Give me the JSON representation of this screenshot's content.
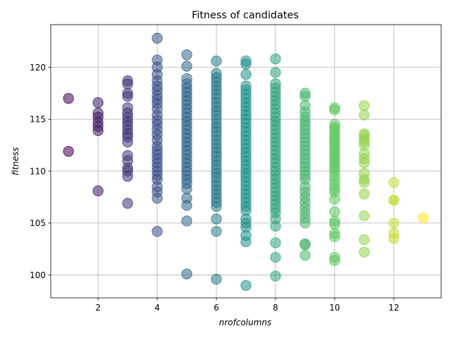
{
  "chart_data": {
    "type": "scatter",
    "title": "Fitness of candidates",
    "xlabel": "nrofcolumns",
    "ylabel": "fitness",
    "xlim": [
      0.4,
      13.6
    ],
    "ylim": [
      97.8,
      124.1
    ],
    "xticks": [
      2,
      4,
      6,
      8,
      10,
      12
    ],
    "yticks": [
      100,
      105,
      110,
      115,
      120
    ],
    "grid": true,
    "colormap": "viridis",
    "color_range": [
      1,
      13
    ],
    "marker_alpha": 0.55,
    "points_by_x": [
      {
        "x": 1,
        "y": [
          117.0,
          111.9
        ]
      },
      {
        "x": 2,
        "y": [
          116.6,
          115.6,
          115.2,
          114.7,
          114.3,
          113.9,
          108.1
        ]
      },
      {
        "x": 3,
        "y": [
          118.7,
          118.4,
          117.5,
          117.2,
          116.1,
          115.6,
          115.2,
          114.8,
          114.4,
          114.0,
          113.6,
          113.3,
          112.8,
          111.5,
          111.0,
          110.3,
          110.0,
          109.5,
          106.9
        ]
      },
      {
        "x": 4,
        "y": [
          122.8,
          120.7,
          120.0,
          119.3,
          118.7,
          118.2,
          117.8,
          117.3,
          116.9,
          116.5,
          116.0,
          115.4,
          114.9,
          114.5,
          114.0,
          113.5,
          113.0,
          112.4,
          112.0,
          111.6,
          111.2,
          110.8,
          110.4,
          110.0,
          109.6,
          109.2,
          108.5,
          108.0,
          107.4,
          104.2
        ]
      },
      {
        "x": 5,
        "y": [
          121.2,
          120.1,
          118.9,
          118.4,
          118.0,
          117.6,
          117.2,
          116.8,
          116.4,
          116.0,
          115.6,
          115.2,
          114.8,
          114.4,
          114.0,
          113.6,
          113.2,
          112.8,
          112.4,
          112.0,
          111.6,
          111.2,
          110.8,
          110.4,
          110.0,
          109.6,
          109.2,
          108.8,
          108.3,
          107.4,
          106.7,
          105.2,
          100.1
        ]
      },
      {
        "x": 6,
        "y": [
          120.6,
          119.4,
          119.0,
          118.6,
          118.2,
          117.8,
          117.4,
          117.0,
          116.6,
          116.2,
          115.8,
          115.4,
          115.0,
          114.6,
          114.2,
          113.8,
          113.4,
          113.0,
          112.6,
          112.2,
          111.8,
          111.4,
          111.0,
          110.6,
          110.2,
          109.8,
          109.4,
          109.0,
          108.6,
          108.2,
          107.8,
          107.4,
          107.0,
          106.6,
          105.4,
          104.2,
          99.6
        ]
      },
      {
        "x": 7,
        "y": [
          120.6,
          120.3,
          119.3,
          118.2,
          117.8,
          117.4,
          117.0,
          116.6,
          116.2,
          115.8,
          115.4,
          115.0,
          114.6,
          114.2,
          113.8,
          113.4,
          113.0,
          112.6,
          112.2,
          111.8,
          111.4,
          111.0,
          110.6,
          110.2,
          109.8,
          109.4,
          109.0,
          108.6,
          108.2,
          107.8,
          107.4,
          107.0,
          106.6,
          106.2,
          105.4,
          105.0,
          104.6,
          103.8,
          103.2,
          99.0
        ]
      },
      {
        "x": 8,
        "y": [
          120.8,
          119.5,
          118.4,
          118.0,
          117.6,
          117.2,
          116.8,
          116.4,
          116.0,
          115.6,
          115.2,
          114.8,
          114.4,
          114.0,
          113.6,
          113.2,
          112.8,
          112.4,
          112.0,
          111.6,
          111.2,
          110.8,
          110.4,
          110.0,
          109.6,
          109.2,
          108.8,
          108.4,
          108.0,
          107.6,
          107.2,
          106.8,
          106.4,
          106.0,
          105.4,
          104.7,
          103.1,
          101.7,
          99.9
        ]
      },
      {
        "x": 9,
        "y": [
          117.5,
          117.2,
          116.3,
          115.7,
          115.2,
          114.8,
          114.4,
          114.0,
          113.6,
          113.2,
          112.8,
          112.4,
          112.0,
          111.6,
          111.2,
          110.8,
          110.4,
          110.0,
          109.6,
          109.2,
          108.5,
          108.0,
          107.5,
          107.0,
          106.5,
          106.0,
          105.5,
          105.0,
          103.0,
          102.9,
          101.9
        ]
      },
      {
        "x": 10,
        "y": [
          116.1,
          115.9,
          114.5,
          114.2,
          113.9,
          113.6,
          113.3,
          113.0,
          112.7,
          112.4,
          112.1,
          111.8,
          111.5,
          111.2,
          110.9,
          110.6,
          110.3,
          110.0,
          109.5,
          109.1,
          108.7,
          108.3,
          108.0,
          107.3,
          106.1,
          105.2,
          104.9,
          104.0,
          103.7,
          101.7,
          101.4
        ]
      },
      {
        "x": 11,
        "y": [
          116.3,
          115.4,
          113.6,
          113.4,
          113.1,
          112.8,
          112.5,
          111.7,
          111.2,
          110.8,
          109.8,
          109.2,
          108.9,
          107.8,
          105.7,
          103.4,
          102.2
        ]
      },
      {
        "x": 12,
        "y": [
          108.9,
          107.2,
          107.2,
          105.0,
          104.0,
          103.5
        ]
      },
      {
        "x": 13,
        "y": [
          105.5
        ]
      }
    ]
  }
}
